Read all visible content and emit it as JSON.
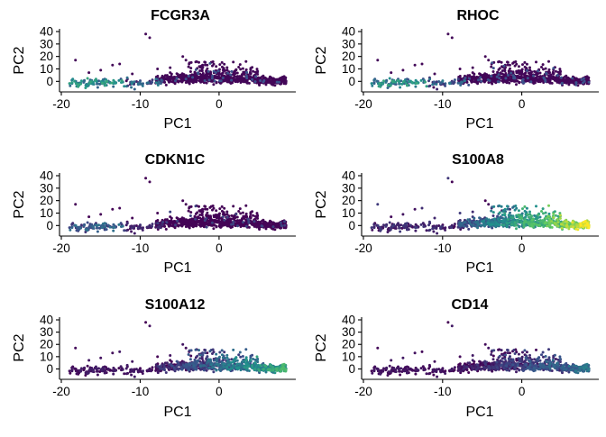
{
  "colors": {
    "low": "#440154",
    "mid": "#21908C",
    "high": "#FDE725",
    "axis": "#000000"
  },
  "chart_data": [
    {
      "type": "scatter",
      "title": "FCGR3A",
      "xlabel": "PC1",
      "ylabel": "PC2",
      "xticks": [
        -20,
        -10,
        0
      ],
      "yticks": [
        0,
        10,
        20,
        30,
        40
      ],
      "xlim": [
        -20,
        9.5
      ],
      "ylim": [
        -7,
        40
      ],
      "grid": false,
      "legend": "none",
      "gene_profile": "nonclassical_monocyte"
    },
    {
      "type": "scatter",
      "title": "RHOC",
      "xlabel": "PC1",
      "ylabel": "PC2",
      "xticks": [
        -20,
        -10,
        0
      ],
      "yticks": [
        0,
        10,
        20,
        30,
        40
      ],
      "xlim": [
        -20,
        9.5
      ],
      "ylim": [
        -7,
        40
      ],
      "grid": false,
      "legend": "none",
      "gene_profile": "nonclassical_monocyte"
    },
    {
      "type": "scatter",
      "title": "CDKN1C",
      "xlabel": "PC1",
      "ylabel": "PC2",
      "xticks": [
        -20,
        -10,
        0
      ],
      "yticks": [
        0,
        10,
        20,
        30,
        40
      ],
      "xlim": [
        -20,
        9.5
      ],
      "ylim": [
        -7,
        40
      ],
      "grid": false,
      "legend": "none",
      "gene_profile": "nonclassical_weak"
    },
    {
      "type": "scatter",
      "title": "S100A8",
      "xlabel": "PC1",
      "ylabel": "PC2",
      "xticks": [
        -20,
        -10,
        0
      ],
      "yticks": [
        0,
        10,
        20,
        30,
        40
      ],
      "xlim": [
        -20,
        9.5
      ],
      "ylim": [
        -7,
        40
      ],
      "grid": false,
      "legend": "none",
      "gene_profile": "classical_strong"
    },
    {
      "type": "scatter",
      "title": "S100A12",
      "xlabel": "PC1",
      "ylabel": "PC2",
      "xticks": [
        -20,
        -10,
        0
      ],
      "yticks": [
        0,
        10,
        20,
        30,
        40
      ],
      "xlim": [
        -20,
        9.5
      ],
      "ylim": [
        -7,
        40
      ],
      "grid": false,
      "legend": "none",
      "gene_profile": "classical_medium"
    },
    {
      "type": "scatter",
      "title": "CD14",
      "xlabel": "PC1",
      "ylabel": "PC2",
      "xticks": [
        -20,
        -10,
        0
      ],
      "yticks": [
        0,
        10,
        20,
        30,
        40
      ],
      "xlim": [
        -20,
        9.5
      ],
      "ylim": [
        -7,
        40
      ],
      "grid": false,
      "legend": "none",
      "gene_profile": "classical_weak"
    }
  ]
}
